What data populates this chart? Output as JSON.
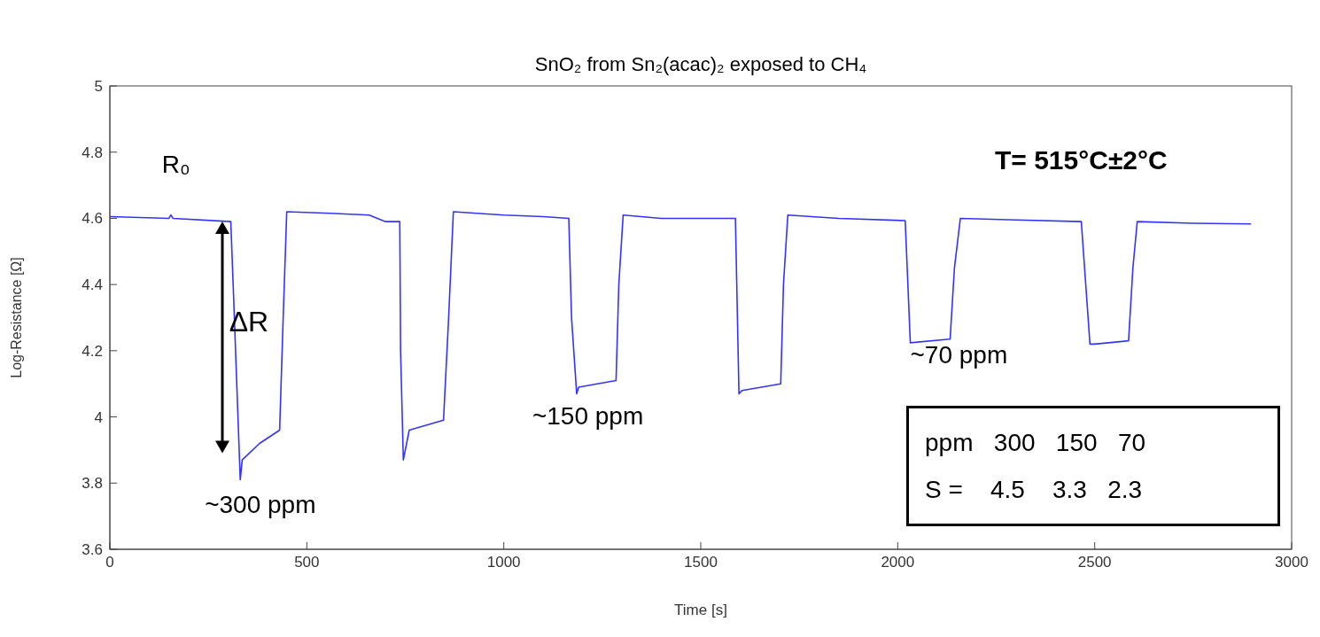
{
  "chart_data": {
    "type": "line",
    "title": "SnO₂ from Sn₂(acac)₂ exposed to CH₄",
    "xlabel": "Time [s]",
    "ylabel": "Log-Resistance [Ω]",
    "x": [
      0,
      150,
      155,
      160,
      307,
      313,
      331,
      336,
      380,
      431,
      440,
      449,
      560,
      658,
      700,
      736,
      738,
      745,
      760,
      847,
      860,
      872,
      1000,
      1100,
      1165,
      1172,
      1185,
      1190,
      1285,
      1292,
      1303,
      1400,
      1500,
      1588,
      1597,
      1605,
      1703,
      1710,
      1721,
      1850,
      2019,
      2032,
      2133,
      2144,
      2159,
      2300,
      2466,
      2488,
      2500,
      2586,
      2597,
      2608,
      2750,
      2897
    ],
    "series": [
      {
        "color": "#3333ff",
        "values": [
          4.605,
          4.6,
          4.61,
          4.6,
          4.59,
          4.4,
          3.81,
          3.87,
          3.92,
          3.96,
          4.3,
          4.62,
          4.615,
          4.61,
          4.59,
          4.59,
          4.2,
          3.87,
          3.96,
          3.99,
          4.3,
          4.62,
          4.61,
          4.605,
          4.6,
          4.3,
          4.07,
          4.09,
          4.11,
          4.4,
          4.61,
          4.6,
          4.6,
          4.6,
          4.07,
          4.08,
          4.1,
          4.4,
          4.61,
          4.6,
          4.593,
          4.224,
          4.235,
          4.45,
          4.6,
          4.595,
          4.59,
          4.22,
          4.22,
          4.23,
          4.45,
          4.59,
          4.585,
          4.583
        ]
      }
    ],
    "xlim": [
      0,
      3000
    ],
    "xticks": [
      0,
      500,
      1000,
      1500,
      2000,
      2500,
      3000
    ],
    "ylim": [
      3.6,
      5
    ],
    "yticks": [
      3.6,
      3.8,
      4,
      4.2,
      4.4,
      4.6,
      4.8,
      5
    ],
    "annotations": [
      "R₀",
      "ΔR",
      {
        "text": "~300 ppm",
        "x": 331,
        "y": 3.81
      },
      {
        "text": "~150 ppm",
        "x": 1185,
        "y": 4.07
      },
      {
        "text": "~70 ppm",
        "x": 2133,
        "y": 4.235
      },
      "T= 515°C±2°C",
      "ppm   300   150   70",
      "S =    4.5    3.3   2.3"
    ],
    "marker": "none",
    "line_style": "solid"
  }
}
